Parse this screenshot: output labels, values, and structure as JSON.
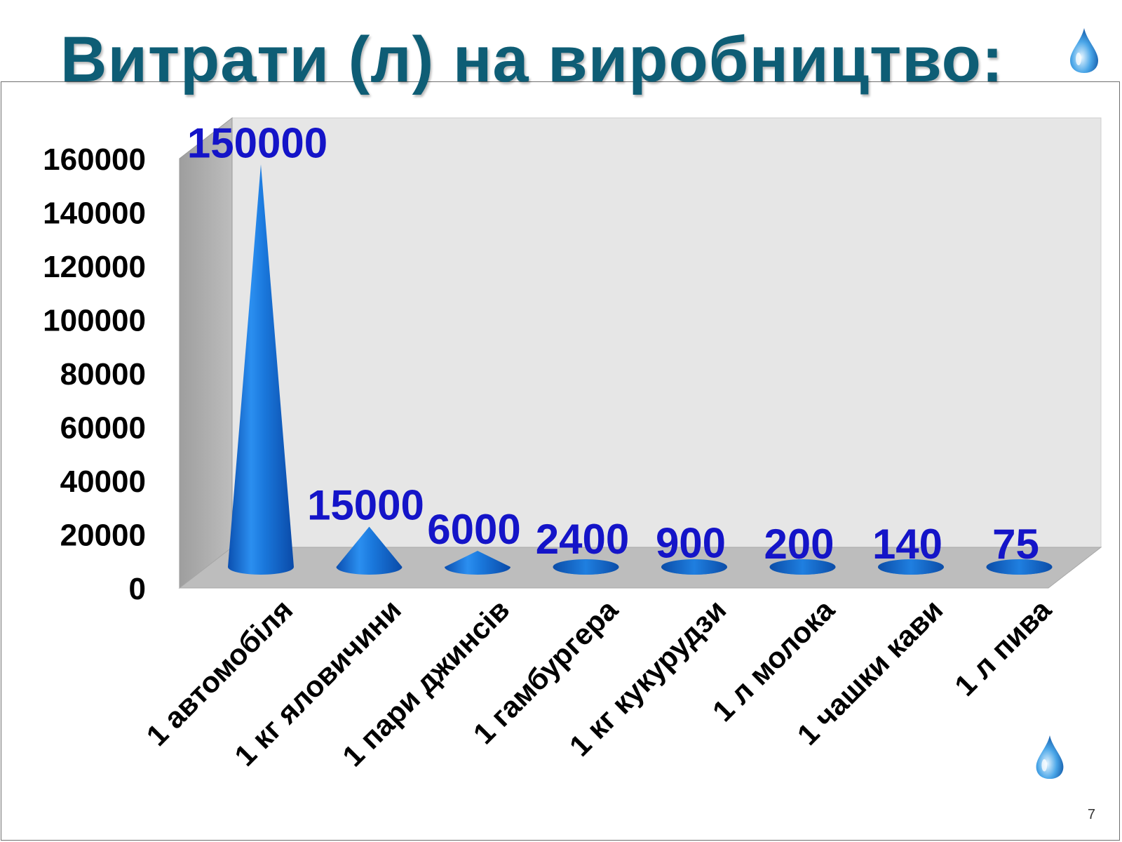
{
  "slide": {
    "title": "Витрати (л) на виробництво:",
    "page_number": "7"
  },
  "colors": {
    "title": "#0e5d75",
    "cone": "#1e7fe0",
    "value_label": "#1414c8",
    "wall": "#e6e6e6",
    "floor": "#bdbdbd"
  },
  "icons": [
    "water-drop-icon",
    "water-drop-icon"
  ],
  "chart_data": {
    "type": "bar",
    "style": "3d-cone",
    "categories": [
      "1 автомобіля",
      "1 кг яловичини",
      "1 пари джинсів",
      "1 гамбургера",
      "1 кг кукурудзи",
      "1 л молока",
      "1 чашки кави",
      "1 л пива"
    ],
    "values": [
      150000,
      15000,
      6000,
      2400,
      900,
      200,
      140,
      75
    ],
    "data_labels": [
      "150000",
      "15000",
      "6000",
      "2400",
      "900",
      "200",
      "140",
      "75"
    ],
    "yticks": [
      "0",
      "20000",
      "40000",
      "60000",
      "80000",
      "100000",
      "120000",
      "140000",
      "160000"
    ],
    "ylim": [
      0,
      160000
    ],
    "title": "",
    "xlabel": "",
    "ylabel": "",
    "grid": false,
    "legend": "none"
  }
}
